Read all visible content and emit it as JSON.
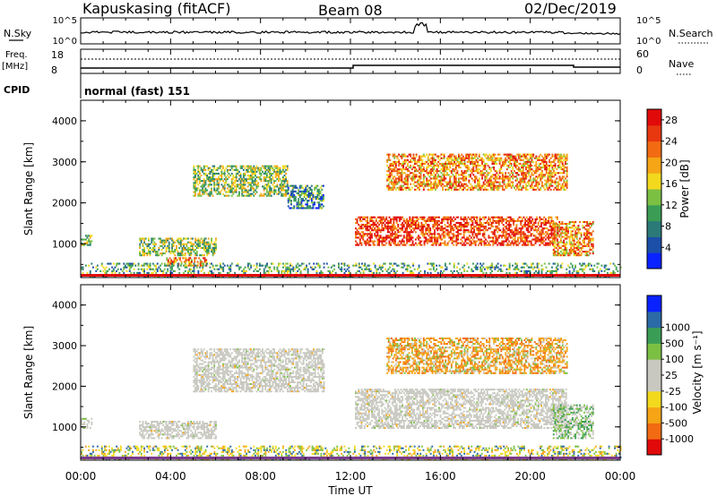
{
  "header": {
    "station": "Kapuskasing (fitACF)",
    "beam": "Beam 08",
    "date": "02/Dec/2019"
  },
  "nsky": {
    "label": "N.Sky",
    "ticks_left": [
      "10^5",
      "10^0"
    ],
    "ticks_right": [
      "10^5",
      "10^0"
    ],
    "right_label": "N.Search"
  },
  "freq": {
    "label_top": "Freq.",
    "label_bottom": "[MHz]",
    "ticks_left": [
      "18",
      "8"
    ],
    "ticks_right": [
      "60",
      "0"
    ],
    "right_label": "Nave"
  },
  "cpid": {
    "label": "CPID",
    "value": "normal (fast) 151"
  },
  "time_axis": {
    "ticks": [
      "00:00",
      "04:00",
      "08:00",
      "12:00",
      "16:00",
      "20:00",
      "00:00"
    ],
    "label": "Time UT"
  },
  "colors": {
    "power": [
      "#0a22ff",
      "#1c4fa8",
      "#2b7a78",
      "#3b9d55",
      "#7cc043",
      "#f2d91e",
      "#f5a516",
      "#f26b12",
      "#e8380f",
      "#e10a0a"
    ],
    "velocity": [
      "#e10a0a",
      "#f26b12",
      "#f5a516",
      "#f2d91e",
      "#c8c8c0",
      "#c8c8c0",
      "#7cc043",
      "#3b9d55",
      "#2b6aa6",
      "#0a22ff"
    ]
  },
  "chart_data": [
    {
      "type": "heatmap",
      "panel": "power",
      "ylabel": "Slant Range [km]",
      "yticks": [
        "1000",
        "2000",
        "3000",
        "4000"
      ],
      "ylim": [
        180,
        4500
      ],
      "xlim": [
        0,
        24
      ],
      "colorbar": {
        "label": "Power [dB]",
        "tick_labels": [
          "4",
          "8",
          "12",
          "16",
          "20",
          "24",
          "28"
        ],
        "range": [
          0,
          30
        ]
      },
      "regions": [
        {
          "t0": 0.0,
          "t1": 0.5,
          "r0": 950,
          "r1": 1200,
          "level": 0.4
        },
        {
          "t0": 2.6,
          "t1": 6.0,
          "r0": 700,
          "r1": 1150,
          "level": 0.45
        },
        {
          "t0": 3.8,
          "t1": 5.6,
          "r0": 450,
          "r1": 650,
          "level": 0.7
        },
        {
          "t0": 5.0,
          "t1": 9.2,
          "r0": 2150,
          "r1": 2900,
          "level": 0.45
        },
        {
          "t0": 9.2,
          "t1": 10.8,
          "r0": 1850,
          "r1": 2400,
          "level": 0.3
        },
        {
          "t0": 12.2,
          "t1": 21.2,
          "r0": 950,
          "r1": 1650,
          "level": 0.85
        },
        {
          "t0": 13.6,
          "t1": 21.6,
          "r0": 2300,
          "r1": 3200,
          "level": 0.7
        },
        {
          "t0": 21.0,
          "t1": 22.8,
          "r0": 700,
          "r1": 1550,
          "level": 0.7
        },
        {
          "t0": 0.0,
          "t1": 24.0,
          "r0": 180,
          "r1": 500,
          "level": 0.35
        }
      ]
    },
    {
      "type": "heatmap",
      "panel": "velocity",
      "ylabel": "Slant Range [km]",
      "yticks": [
        "1000",
        "2000",
        "3000",
        "4000"
      ],
      "ylim": [
        180,
        4500
      ],
      "xlim": [
        0,
        24
      ],
      "colorbar": {
        "label": "Velocity [m s⁻¹]",
        "tick_labels": [
          "-1000",
          "-500",
          "-100",
          "-25",
          "25",
          "100",
          "500",
          "1000"
        ],
        "range": [
          -1500,
          1500
        ]
      },
      "regions": [
        {
          "t0": 0.0,
          "t1": 0.5,
          "r0": 950,
          "r1": 1200,
          "mode": "gray"
        },
        {
          "t0": 2.6,
          "t1": 6.0,
          "r0": 700,
          "r1": 1150,
          "mode": "gray"
        },
        {
          "t0": 5.0,
          "t1": 10.8,
          "r0": 1850,
          "r1": 2900,
          "mode": "gray"
        },
        {
          "t0": 12.2,
          "t1": 21.6,
          "r0": 950,
          "r1": 1900,
          "mode": "gray"
        },
        {
          "t0": 13.6,
          "t1": 21.6,
          "r0": 2300,
          "r1": 3200,
          "mode": "orange"
        },
        {
          "t0": 21.0,
          "t1": 22.8,
          "r0": 700,
          "r1": 1550,
          "mode": "mixed"
        },
        {
          "t0": 0.0,
          "t1": 24.0,
          "r0": 180,
          "r1": 500,
          "mode": "ground"
        }
      ]
    }
  ]
}
